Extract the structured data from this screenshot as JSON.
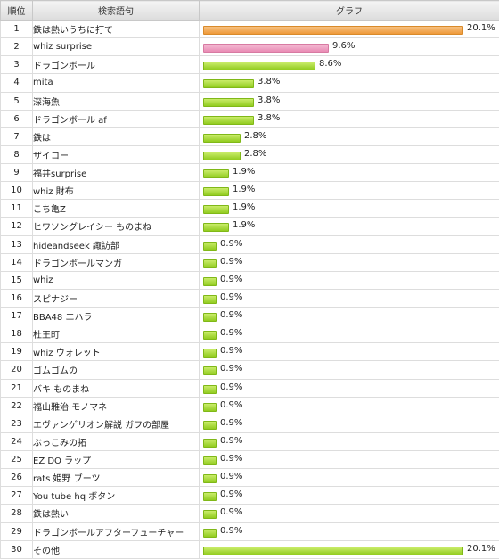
{
  "headers": {
    "rank": "順位",
    "term": "検索語句",
    "graph": "グラフ"
  },
  "colors": {
    "top": "#ef9a3a",
    "second": "#e98bb4",
    "rest": "#92cc20"
  },
  "chart_data": {
    "type": "bar",
    "orientation": "horizontal",
    "categories": [
      "鉄は熱いうちに打て",
      "whiz surprise",
      "ドラゴンボール",
      "mita",
      "深海魚",
      "ドラゴンボール af",
      "鉄は",
      "ザイコー",
      "福井surprise",
      "whiz 財布",
      "こち亀Z",
      "ヒワソングレイシー ものまね",
      "hideandseek 諏訪部",
      "ドラゴンボールマンガ",
      "whiz",
      "スピナジー",
      "BBA48 エハラ",
      "杜王町",
      "whiz ウォレット",
      "ゴムゴムの",
      "バキ ものまね",
      "福山雅治 モノマネ",
      "エヴァンゲリオン解説 ガフの部屋",
      "ぶっこみの拓",
      "EZ DO ラップ",
      "rats 姫野 ブーツ",
      "You tube hq ボタン",
      "鉄は熱い",
      "ドラゴンボールアフターフューチャー",
      "その他"
    ],
    "ranks": [
      1,
      2,
      3,
      4,
      5,
      6,
      7,
      8,
      9,
      10,
      11,
      12,
      13,
      14,
      15,
      16,
      17,
      18,
      19,
      20,
      21,
      22,
      23,
      24,
      25,
      26,
      27,
      28,
      29,
      30
    ],
    "values": [
      20.1,
      9.6,
      8.6,
      3.8,
      3.8,
      3.8,
      2.8,
      2.8,
      1.9,
      1.9,
      1.9,
      1.9,
      0.9,
      0.9,
      0.9,
      0.9,
      0.9,
      0.9,
      0.9,
      0.9,
      0.9,
      0.9,
      0.9,
      0.9,
      0.9,
      0.9,
      0.9,
      0.9,
      0.9,
      20.1
    ],
    "labels": [
      "20.1%",
      "9.6%",
      "8.6%",
      "3.8%",
      "3.8%",
      "3.8%",
      "2.8%",
      "2.8%",
      "1.9%",
      "1.9%",
      "1.9%",
      "1.9%",
      "0.9%",
      "0.9%",
      "0.9%",
      "0.9%",
      "0.9%",
      "0.9%",
      "0.9%",
      "0.9%",
      "0.9%",
      "0.9%",
      "0.9%",
      "0.9%",
      "0.9%",
      "0.9%",
      "0.9%",
      "0.9%",
      "0.9%",
      "20.1%"
    ],
    "xlim": [
      0,
      20.1
    ]
  }
}
